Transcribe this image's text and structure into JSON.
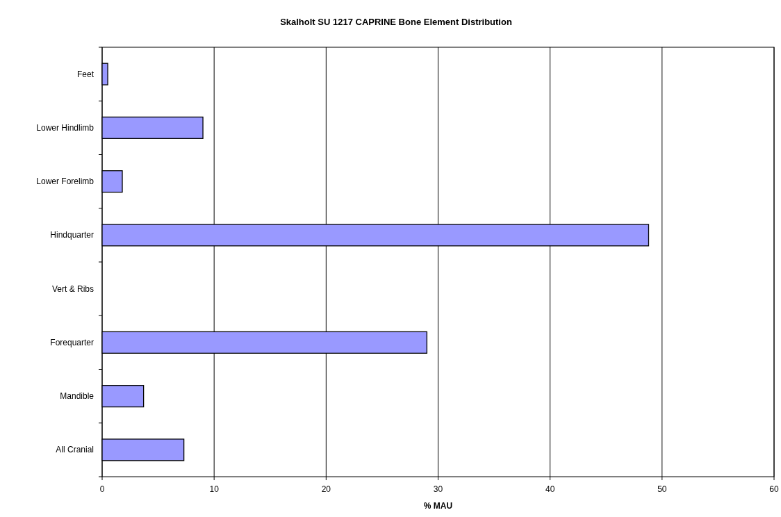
{
  "chart_data": {
    "type": "bar",
    "orientation": "horizontal",
    "title": "Skalholt SU 1217 CAPRINE Bone Element Distribution",
    "xlabel": "% MAU",
    "categories": [
      "Feet",
      "Lower Hindlimb",
      "Lower Forelimb",
      "Hindquarter",
      "Vert & Ribs",
      "Forequarter",
      "Mandible",
      "All Cranial"
    ],
    "values": [
      0.5,
      9.0,
      1.8,
      48.8,
      0,
      29.0,
      3.7,
      7.3
    ],
    "color": "#9999ff",
    "xlim": [
      0,
      60
    ],
    "xticks": [
      0,
      10,
      20,
      30,
      40,
      50,
      60
    ],
    "grid": "x"
  }
}
